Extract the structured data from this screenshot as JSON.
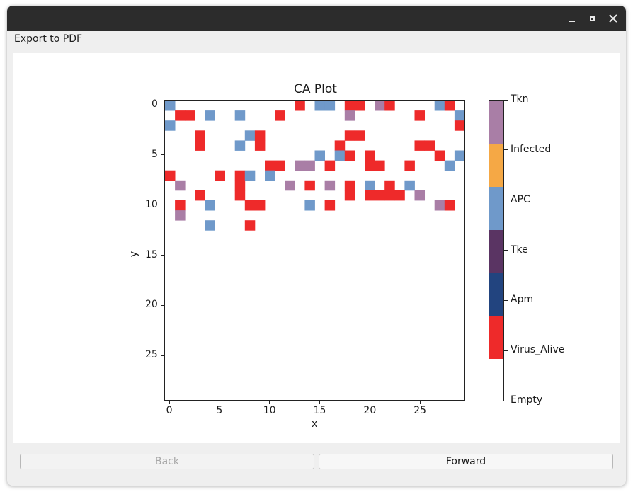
{
  "window": {
    "controls": [
      "minimize-icon",
      "maximize-icon",
      "close-icon"
    ]
  },
  "menubar": {
    "export_label": "Export to PDF"
  },
  "buttons": {
    "back_label": "Back",
    "back_enabled": false,
    "forward_label": "Forward"
  },
  "chart_data": {
    "type": "heatmap",
    "title": "CA Plot",
    "xlabel": "x",
    "ylabel": "y",
    "xlim": [
      -0.5,
      29.5
    ],
    "ylim": [
      29.5,
      -0.5
    ],
    "xticks": [
      0,
      5,
      10,
      15,
      20,
      25
    ],
    "yticks": [
      0,
      5,
      10,
      15,
      20,
      25
    ],
    "colorbar": {
      "labels": [
        "Empty",
        "Virus_Alive",
        "Apm",
        "Tke",
        "APC",
        "Infected",
        "Tkn"
      ],
      "colors": [
        "#ffffff",
        "#ee2a2a",
        "#22447f",
        "#5a3463",
        "#6f99ca",
        "#f5a845",
        "#a97ea6"
      ]
    },
    "codes": {
      "0": "Empty",
      "1": "Virus_Alive",
      "2": "Apm",
      "3": "Tke",
      "4": "APC",
      "5": "Infected",
      "6": "Tkn"
    },
    "grid": [
      "400000000000010440110610000410",
      "011040040001000000600000010004",
      "400000000000000000000000000001",
      "000100004100000000110000000000",
      "000100040100000001000000011000",
      "000000000000000404101000000104",
      "000000000011066010001100100040",
      "100001014040000000000000000000",
      "060000010000601060104010400000",
      "000100010000000000101111060000",
      "010040001100004010000000000610",
      "060000000000000000000000000000",
      "000040001000000000000000000000",
      "000000000000000000000000000000",
      "000000000000000000000000000000",
      "000000000000000000000000000000",
      "000000000000000000000000000000",
      "000000000000000000000000000000",
      "000000000000000000000000000000",
      "000000000000000000000000000000",
      "000000000000000000000000000000",
      "000000000000000000000000000000",
      "000000000000000000000000000000",
      "000000000000000000000000000000",
      "000000000000000000000000000000",
      "000000000000000000000000000000",
      "000000000000000000000000000000",
      "000000000000000000000000000000",
      "000000000000000000000000000000",
      "000000000000000000000000000000"
    ]
  }
}
